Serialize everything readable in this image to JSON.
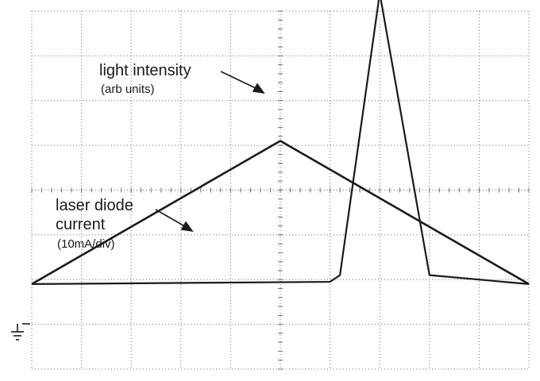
{
  "chart_data": {
    "type": "line",
    "title": "",
    "xlabel": "",
    "ylabel": "",
    "grid": true,
    "x_divisions": 10,
    "y_divisions": 8,
    "xlim": [
      0,
      10
    ],
    "ylim": [
      0,
      8
    ],
    "ground_level": 1.9,
    "series": [
      {
        "name": "laser diode current",
        "unit": "(10mA/div)",
        "x": [
          0,
          5,
          10
        ],
        "y": [
          1.9,
          5.1,
          1.9
        ]
      },
      {
        "name": "light intensity",
        "unit": "(arb units)",
        "x": [
          0,
          6.0,
          6.2,
          7.0,
          8.0,
          10
        ],
        "y": [
          1.9,
          1.95,
          2.1,
          8.4,
          2.1,
          1.9
        ],
        "note_x_are_relative": false
      }
    ],
    "annotations": [
      {
        "text": "light intensity",
        "sub": "(arb units)",
        "target": "light intensity"
      },
      {
        "text": "laser diode",
        "text2": "current",
        "sub": "(10mA/div)",
        "target": "laser diode current"
      }
    ]
  }
}
